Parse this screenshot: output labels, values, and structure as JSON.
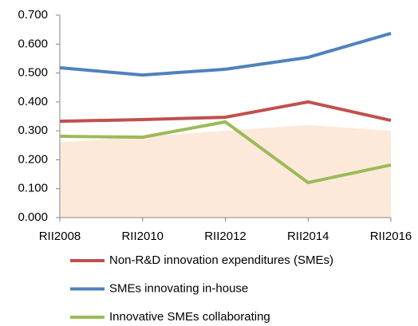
{
  "chart_data": {
    "type": "line",
    "categories": [
      "RII2008",
      "RII2010",
      "RII2012",
      "RII2014",
      "RII2016"
    ],
    "series": [
      {
        "color": "#fde9d9",
        "fill": true,
        "values": [
          0.26,
          0.28,
          0.3,
          0.32,
          0.3
        ]
      },
      {
        "name": "Non-R&D innovation expenditures (SMEs)",
        "color": "#c0504d",
        "values": [
          0.333,
          0.339,
          0.347,
          0.4,
          0.336
        ]
      },
      {
        "name": "SMEs innovating in-house",
        "color": "#4f81bd",
        "values": [
          0.518,
          0.493,
          0.513,
          0.554,
          0.637
        ]
      },
      {
        "name": "Innovative SMEs collaborating",
        "color": "#9bbb59",
        "values": [
          0.281,
          0.278,
          0.331,
          0.121,
          0.182
        ]
      }
    ],
    "ylim": [
      0,
      0.7
    ],
    "yticks": [
      {
        "value": 0,
        "label": "0.000"
      },
      {
        "value": 0.1,
        "label": "0.100"
      },
      {
        "value": 0.2,
        "label": "0.200"
      },
      {
        "value": 0.3,
        "label": "0.300"
      },
      {
        "value": 0.4,
        "label": "0.400"
      },
      {
        "value": 0.5,
        "label": "0.500"
      },
      {
        "value": 0.6,
        "label": "0.600"
      },
      {
        "value": 0.7,
        "label": "0.700"
      }
    ],
    "legend": "bottom"
  }
}
